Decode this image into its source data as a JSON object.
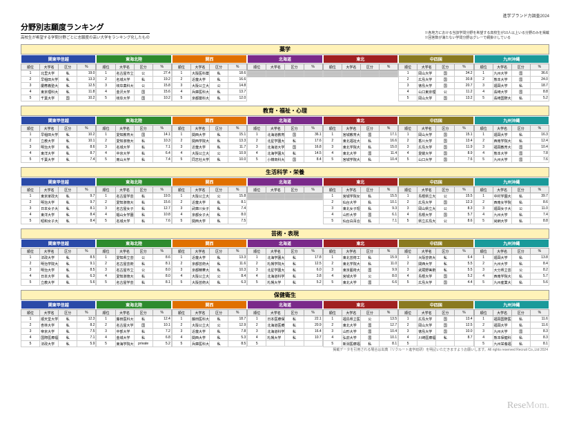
{
  "topNote": "進学ブランド力調査2024",
  "title": "分野別志願度ランキング",
  "subtitle": "高校生が希望する学問分野ごとに志願度の高い大学をランキング化したもの",
  "note1": "※各地方における当該学問分野を希望する高校生が10人以上いる分野のみを掲載",
  "note2": "※回答数が満たない学問分野はグレーで網掛けしている",
  "regions": [
    {
      "label": "関東甲信越",
      "color": "#2a4aa8"
    },
    {
      "label": "東海北陸",
      "color": "#2e8b2e"
    },
    {
      "label": "関西",
      "color": "#e07000"
    },
    {
      "label": "北海道",
      "color": "#7a2a8a"
    },
    {
      "label": "東北",
      "color": "#a02020"
    },
    {
      "label": "中四国",
      "color": "#8a7a20"
    },
    {
      "label": "九州沖縄",
      "color": "#1a9a9a"
    }
  ],
  "cols": [
    "順位",
    "大学名",
    "区分",
    "%"
  ],
  "footnote": "掲載データを引用される場合は出典（リクルート進学総研）を明記いただきますようお願いします。All rights reserved Recruit Co.,Ltd 2024",
  "watermark": {
    "a": "Rese",
    "b": "Mom."
  },
  "categories": [
    {
      "name": "薬学",
      "data": [
        [
          [
            "1",
            "北里大学",
            "私",
            "19.0"
          ],
          [
            "2",
            "早稲田大学",
            "私",
            "13.3"
          ],
          [
            "3",
            "慶應義塾大学",
            "私",
            "12.5"
          ],
          [
            "4",
            "東京理科大学",
            "私",
            "11.8"
          ],
          [
            "5",
            "千葉大学",
            "国",
            "10.2"
          ]
        ],
        [
          [
            "1",
            "名古屋市立大学",
            "公",
            "27.4"
          ],
          [
            "2",
            "名城大学",
            "私",
            "19.2"
          ],
          [
            "3",
            "岐阜薬科大学",
            "公",
            "15.8"
          ],
          [
            "4",
            "金沢大学",
            "国",
            "15.6"
          ],
          [
            "5",
            "岐阜大学",
            "国",
            "10.2"
          ]
        ],
        [
          [
            "1",
            "大阪医科薬科大学",
            "私",
            "18.6"
          ],
          [
            "2",
            "近畿大学",
            "私",
            "16.6"
          ],
          [
            "3",
            "大阪公立大学",
            "公",
            "14.8"
          ],
          [
            "4",
            "兵庫医科大学",
            "私",
            "13.7"
          ],
          [
            "5",
            "京都薬科大学",
            "私",
            "12.0"
          ]
        ],
        [
          [
            "",
            "",
            "",
            ""
          ],
          [
            "",
            "",
            "",
            ""
          ],
          [
            "",
            "",
            "",
            ""
          ],
          [
            "",
            "",
            "",
            ""
          ],
          [
            "",
            "",
            "",
            ""
          ]
        ],
        [
          [
            "",
            "",
            "",
            ""
          ],
          [
            "",
            "",
            "",
            ""
          ],
          [
            "",
            "",
            "",
            ""
          ],
          [
            "",
            "",
            "",
            ""
          ],
          [
            "",
            "",
            "",
            ""
          ]
        ],
        [
          [
            "1",
            "岡山大学",
            "国",
            "34.2"
          ],
          [
            "2",
            "広島大学",
            "国",
            "30.8"
          ],
          [
            "3",
            "徳島大学",
            "国",
            "20.7"
          ],
          [
            "4",
            "山口東京理科大学",
            "公",
            "11.2"
          ],
          [
            "5",
            "岡山大学",
            "国",
            "13.2"
          ]
        ],
        [
          [
            "1",
            "九州大学",
            "国",
            "36.6"
          ],
          [
            "2",
            "熊本大学",
            "国",
            "24.0"
          ],
          [
            "3",
            "福岡大学",
            "私",
            "18.7"
          ],
          [
            "4",
            "長崎大学",
            "国",
            "8.8"
          ],
          [
            "5",
            "長崎国際大学",
            "私",
            "5.2"
          ]
        ]
      ],
      "grey": [
        3,
        4
      ]
    },
    {
      "name": "教育・福祉・心理",
      "data": [
        [
          [
            "1",
            "早稲田大学",
            "私",
            "10.2"
          ],
          [
            "2",
            "立教大学",
            "私",
            "10.1"
          ],
          [
            "3",
            "明治大学",
            "私",
            "8.6"
          ],
          [
            "4",
            "東洋大学",
            "私",
            "8.7"
          ],
          [
            "5",
            "千葉大学",
            "私",
            "7.4"
          ]
        ],
        [
          [
            "1",
            "愛知教育大学",
            "国",
            "14.1"
          ],
          [
            "2",
            "愛知淑徳大学",
            "私",
            "10.3"
          ],
          [
            "3",
            "名城大学",
            "私",
            "7.1"
          ],
          [
            "4",
            "中京大学",
            "私",
            "6.4"
          ],
          [
            "5",
            "南山大学",
            "私",
            "7.4"
          ]
        ],
        [
          [
            "1",
            "関西大学",
            "私",
            "15.1"
          ],
          [
            "2",
            "関西学院大学",
            "私",
            "13.3"
          ],
          [
            "3",
            "近畿大学",
            "私",
            "11.7"
          ],
          [
            "4",
            "大阪公立大学",
            "公",
            "10.9"
          ],
          [
            "5",
            "同志社大学",
            "私",
            "10.0"
          ]
        ],
        [
          [
            "1",
            "北海道教育大学",
            "国",
            "36.1"
          ],
          [
            "2",
            "北星学園大学",
            "私",
            "17.6"
          ],
          [
            "3",
            "北海道大学",
            "国",
            "16.8"
          ],
          [
            "4",
            "北海学園大学",
            "私",
            "14.5"
          ],
          [
            "5",
            "小樽商科大学",
            "国",
            "8.4"
          ]
        ],
        [
          [
            "1",
            "宮城教育大学",
            "国",
            "17.1"
          ],
          [
            "2",
            "東北福祉大学",
            "私",
            "16.6"
          ],
          [
            "3",
            "東北学院大学",
            "私",
            "15.0"
          ],
          [
            "4",
            "東北大学",
            "国",
            "11.4"
          ],
          [
            "5",
            "宮城学院大学",
            "私",
            "10.4"
          ]
        ],
        [
          [
            "1",
            "岡山大学",
            "国",
            "15.1"
          ],
          [
            "2",
            "香川大学",
            "国",
            "13.4"
          ],
          [
            "3",
            "広島大学",
            "国",
            "11.9"
          ],
          [
            "4",
            "愛媛大学",
            "国",
            "8.9"
          ],
          [
            "5",
            "山口大学",
            "国",
            "7.6"
          ]
        ],
        [
          [
            "1",
            "福岡大学",
            "私",
            "16.3"
          ],
          [
            "2",
            "西南学院大学",
            "私",
            "12.4"
          ],
          [
            "3",
            "福岡教育大学",
            "国",
            "10.4"
          ],
          [
            "4",
            "熊本大学",
            "国",
            "7.8"
          ],
          [
            "5",
            "九州大学",
            "国",
            "7.6"
          ]
        ]
      ]
    },
    {
      "name": "生活科学・栄養",
      "data": [
        [
          [
            "1",
            "東京家政大学",
            "私",
            "9.7"
          ],
          [
            "2",
            "明治大学",
            "私",
            "9.7"
          ],
          [
            "3",
            "日本女子大学",
            "私",
            "8.1"
          ],
          [
            "4",
            "東洋大学",
            "私",
            "8.4"
          ],
          [
            "5",
            "昭和女子大学",
            "私",
            "8.4"
          ]
        ],
        [
          [
            "1",
            "名古屋学芸大学",
            "私",
            "19.5"
          ],
          [
            "2",
            "愛知淑徳大学",
            "私",
            "15.6"
          ],
          [
            "3",
            "名古屋女子大学",
            "私",
            "12.7"
          ],
          [
            "4",
            "椙山女学園大学",
            "私",
            "10.8"
          ],
          [
            "5",
            "名城大学",
            "私",
            "7.6"
          ]
        ],
        [
          [
            "1",
            "大阪公立大学",
            "公",
            "15.8"
          ],
          [
            "2",
            "近畿大学",
            "私",
            "8.1"
          ],
          [
            "3",
            "武庫川女子大学",
            "私",
            "7.4"
          ],
          [
            "4",
            "京都女子大学",
            "私",
            "8.0"
          ],
          [
            "5",
            "関西大学",
            "私",
            "7.5"
          ]
        ],
        [
          [
            "",
            "",
            "",
            ""
          ],
          [
            "",
            "",
            "",
            ""
          ],
          [
            "",
            "",
            "",
            ""
          ],
          [
            "",
            "",
            "",
            ""
          ],
          [
            "",
            "",
            "",
            ""
          ]
        ],
        [
          [
            "1",
            "宮城学院女子大学",
            "私",
            "15.5"
          ],
          [
            "2",
            "仙台大学",
            "私",
            "10.1"
          ],
          [
            "3",
            "東北女子短大",
            "私",
            "9.3"
          ],
          [
            "4",
            "山形大学",
            "国",
            "6.1"
          ],
          [
            "5",
            "仙台白百合女子大学",
            "私",
            "7.1"
          ]
        ],
        [
          [
            "1",
            "島根県立大学",
            "公",
            "15.5"
          ],
          [
            "2",
            "広島大学",
            "国",
            "12.3"
          ],
          [
            "3",
            "岡山県立大学",
            "公",
            "8.3"
          ],
          [
            "4",
            "島根大学",
            "国",
            "5.7"
          ],
          [
            "5",
            "県立広島大学",
            "公",
            "8.6"
          ]
        ],
        [
          [
            "1",
            "中村学園大学",
            "私",
            "39.7"
          ],
          [
            "2",
            "西南女学院大学",
            "私",
            "8.6"
          ],
          [
            "3",
            "福岡女子大学",
            "公",
            "11.0"
          ],
          [
            "4",
            "九州大学",
            "私",
            "7.4"
          ],
          [
            "5",
            "尚絅大学",
            "私",
            "8.8"
          ]
        ]
      ],
      "grey": [
        3
      ]
    },
    {
      "name": "芸術・表現",
      "data": [
        [
          [
            "1",
            "法政大学",
            "私",
            "8.5"
          ],
          [
            "2",
            "明治学院大学",
            "私",
            "9.1"
          ],
          [
            "3",
            "明治大学",
            "私",
            "8.5"
          ],
          [
            "4",
            "日本大学",
            "私",
            "6.3"
          ],
          [
            "5",
            "立教大学",
            "私",
            "5.6"
          ]
        ],
        [
          [
            "1",
            "愛知県立芸術大学",
            "公",
            "8.6"
          ],
          [
            "2",
            "名古屋芸術大学",
            "私",
            "8.1"
          ],
          [
            "3",
            "名古屋市立大学",
            "公",
            "8.0"
          ],
          [
            "4",
            "愛知淑徳大学",
            "私",
            "8.0"
          ],
          [
            "5",
            "名古屋学芸大学",
            "私",
            "8.1"
          ]
        ],
        [
          [
            "1",
            "近畿大学",
            "私",
            "13.3"
          ],
          [
            "2",
            "京都芸術大学",
            "私",
            "11.6"
          ],
          [
            "3",
            "京都精華大学",
            "私",
            "10.3"
          ],
          [
            "4",
            "大阪公立大学",
            "公",
            "8.4"
          ],
          [
            "5",
            "大阪芸術大学",
            "私",
            "6.3"
          ]
        ],
        [
          [
            "1",
            "北海学園大学",
            "私",
            "17.8"
          ],
          [
            "2",
            "札幌学院大学",
            "私",
            "12.5"
          ],
          [
            "3",
            "北星学園大学",
            "私",
            "6.0"
          ],
          [
            "4",
            "北海道科学大学",
            "私",
            "3.8"
          ],
          [
            "5",
            "札幌大学",
            "私",
            "5.2"
          ]
        ],
        [
          [
            "1",
            "東北芸術工科大学",
            "私",
            "15.9"
          ],
          [
            "2",
            "東北学院大学",
            "私",
            "11.0"
          ],
          [
            "3",
            "東京藝術大学",
            "国",
            "9.9"
          ],
          [
            "4",
            "宮城大学",
            "公",
            "8.0"
          ],
          [
            "5",
            "東北大学",
            "国",
            "6.6"
          ]
        ],
        [
          [
            "1",
            "大阪芸術大学",
            "私",
            "6.4"
          ],
          [
            "2",
            "関西大学",
            "私",
            "5.5"
          ],
          [
            "3",
            "武蔵野美術大学",
            "私",
            "5.5"
          ],
          [
            "4",
            "島根大学",
            "国",
            "5.2"
          ],
          [
            "5",
            "広島大学",
            "国",
            "4.4"
          ]
        ],
        [
          [
            "1",
            "福岡大学",
            "私",
            "13.8"
          ],
          [
            "2",
            "九州大学",
            "私",
            "8.4"
          ],
          [
            "3",
            "大分県立芸術文化短大",
            "公",
            "8.2"
          ],
          [
            "4",
            "西南学院大学",
            "私",
            "5.7"
          ],
          [
            "5",
            "九州産業大学",
            "私",
            "5.6"
          ]
        ]
      ]
    },
    {
      "name": "保健衛生",
      "data": [
        [
          [
            "1",
            "順天堂大学",
            "私",
            "12.3"
          ],
          [
            "2",
            "杏林大学",
            "私",
            "8.2"
          ],
          [
            "3",
            "帝京大学",
            "私",
            "7.5"
          ],
          [
            "4",
            "国際医療福祉大学",
            "私",
            "7.1"
          ],
          [
            "5",
            "法政大学",
            "私",
            "5.9"
          ]
        ],
        [
          [
            "1",
            "藤田医科大学",
            "私",
            "12.4"
          ],
          [
            "2",
            "名古屋大学",
            "国",
            "10.1"
          ],
          [
            "3",
            "中部大学",
            "私",
            "7.2"
          ],
          [
            "4",
            "金城大学",
            "私",
            "6.8"
          ],
          [
            "5",
            "東海学院大学",
            "private",
            "5.2"
          ]
        ],
        [
          [
            "1",
            "藤田医科大学",
            "私",
            "18.7"
          ],
          [
            "2",
            "大阪公立大学",
            "公",
            "12.9"
          ],
          [
            "3",
            "近畿大学",
            "私",
            "7.8"
          ],
          [
            "4",
            "関西大学",
            "私",
            "5.3"
          ],
          [
            "5",
            "兵庫医科大学",
            "私",
            "8.5"
          ]
        ],
        [
          [
            "1",
            "日本医療保健大学",
            "私",
            "22.1"
          ],
          [
            "2",
            "北海道医療福祉大学",
            "私",
            "20.9"
          ],
          [
            "3",
            "北海道科学大学",
            "私",
            "16.4"
          ],
          [
            "4",
            "札幌大学",
            "私",
            "10.7"
          ],
          [
            "5",
            "",
            "",
            ""
          ]
        ],
        [
          [
            "1",
            "福島県立医大",
            "公",
            "13.5"
          ],
          [
            "2",
            "東北大学",
            "国",
            "12.7"
          ],
          [
            "3",
            "山形大学",
            "国",
            "10.4"
          ],
          [
            "4",
            "弘前大学",
            "国",
            "10.1"
          ],
          [
            "5",
            "新潟医療福祉大学",
            "私",
            "8.1"
          ]
        ],
        [
          [
            "1",
            "広島大学",
            "国",
            "13.4"
          ],
          [
            "2",
            "岡山大学",
            "国",
            "12.5"
          ],
          [
            "3",
            "徳島大学",
            "国",
            "10.0"
          ],
          [
            "4",
            "川崎医療福祉大学",
            "私",
            "8.7"
          ],
          [
            "5",
            "",
            "",
            ""
          ]
        ],
        [
          [
            "1",
            "福岡国際医療福祉大学",
            "私",
            "11.6"
          ],
          [
            "2",
            "福岡大学",
            "私",
            "11.6"
          ],
          [
            "3",
            "九州大学",
            "国",
            "8.3"
          ],
          [
            "4",
            "熊本保健科学大学",
            "私",
            "8.3"
          ],
          [
            "5",
            "九州栄養福祉大学",
            "私",
            "8.1"
          ]
        ]
      ]
    }
  ],
  "greyRegions": {
    "0": [
      3,
      4
    ],
    "2": [
      3
    ]
  }
}
